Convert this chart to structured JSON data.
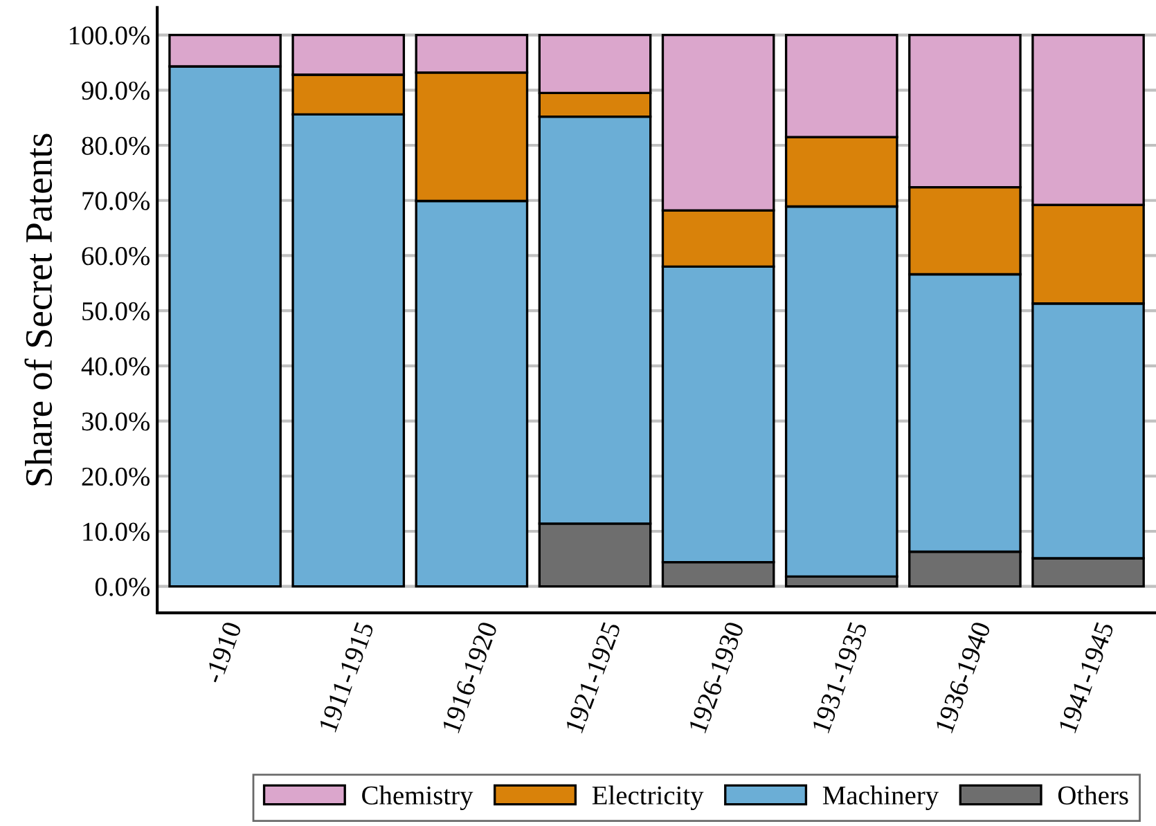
{
  "chart_data": {
    "type": "bar",
    "stacked": true,
    "ylabel": "Share of Secret Patents",
    "categories": [
      "-1910",
      "1911-1915",
      "1916-1920",
      "1921-1925",
      "1926-1930",
      "1931-1935",
      "1936-1940",
      "1941-1945"
    ],
    "series": [
      {
        "name": "Others",
        "color": "#6e6e6e",
        "values": [
          null,
          null,
          null,
          11.4,
          4.4,
          1.8,
          6.3,
          5.1
        ]
      },
      {
        "name": "Machinery",
        "color": "#6baed6",
        "values": [
          94.3,
          85.6,
          69.9,
          73.8,
          53.6,
          67.1,
          50.3,
          46.2
        ]
      },
      {
        "name": "Electricity",
        "color": "#d9820a",
        "values": [
          null,
          7.2,
          23.3,
          4.3,
          10.2,
          12.6,
          15.8,
          17.9
        ]
      },
      {
        "name": "Chemistry",
        "color": "#dba6cc",
        "values": [
          5.7,
          7.2,
          6.8,
          10.5,
          31.8,
          18.5,
          27.6,
          30.8
        ]
      }
    ],
    "ylim": [
      -4.8,
      105
    ],
    "yticks": [
      {
        "value": 0,
        "label": "0.0%"
      },
      {
        "value": 10,
        "label": "10.0%"
      },
      {
        "value": 20,
        "label": "20.0%"
      },
      {
        "value": 30,
        "label": "30.0%"
      },
      {
        "value": 40,
        "label": "40.0%"
      },
      {
        "value": 50,
        "label": "50.0%"
      },
      {
        "value": 60,
        "label": "60.0%"
      },
      {
        "value": 70,
        "label": "70.0%"
      },
      {
        "value": 80,
        "label": "80.0%"
      },
      {
        "value": 90,
        "label": "90.0%"
      },
      {
        "value": 100,
        "label": "100.0%"
      }
    ],
    "grid": "y",
    "legend": "bottom"
  }
}
